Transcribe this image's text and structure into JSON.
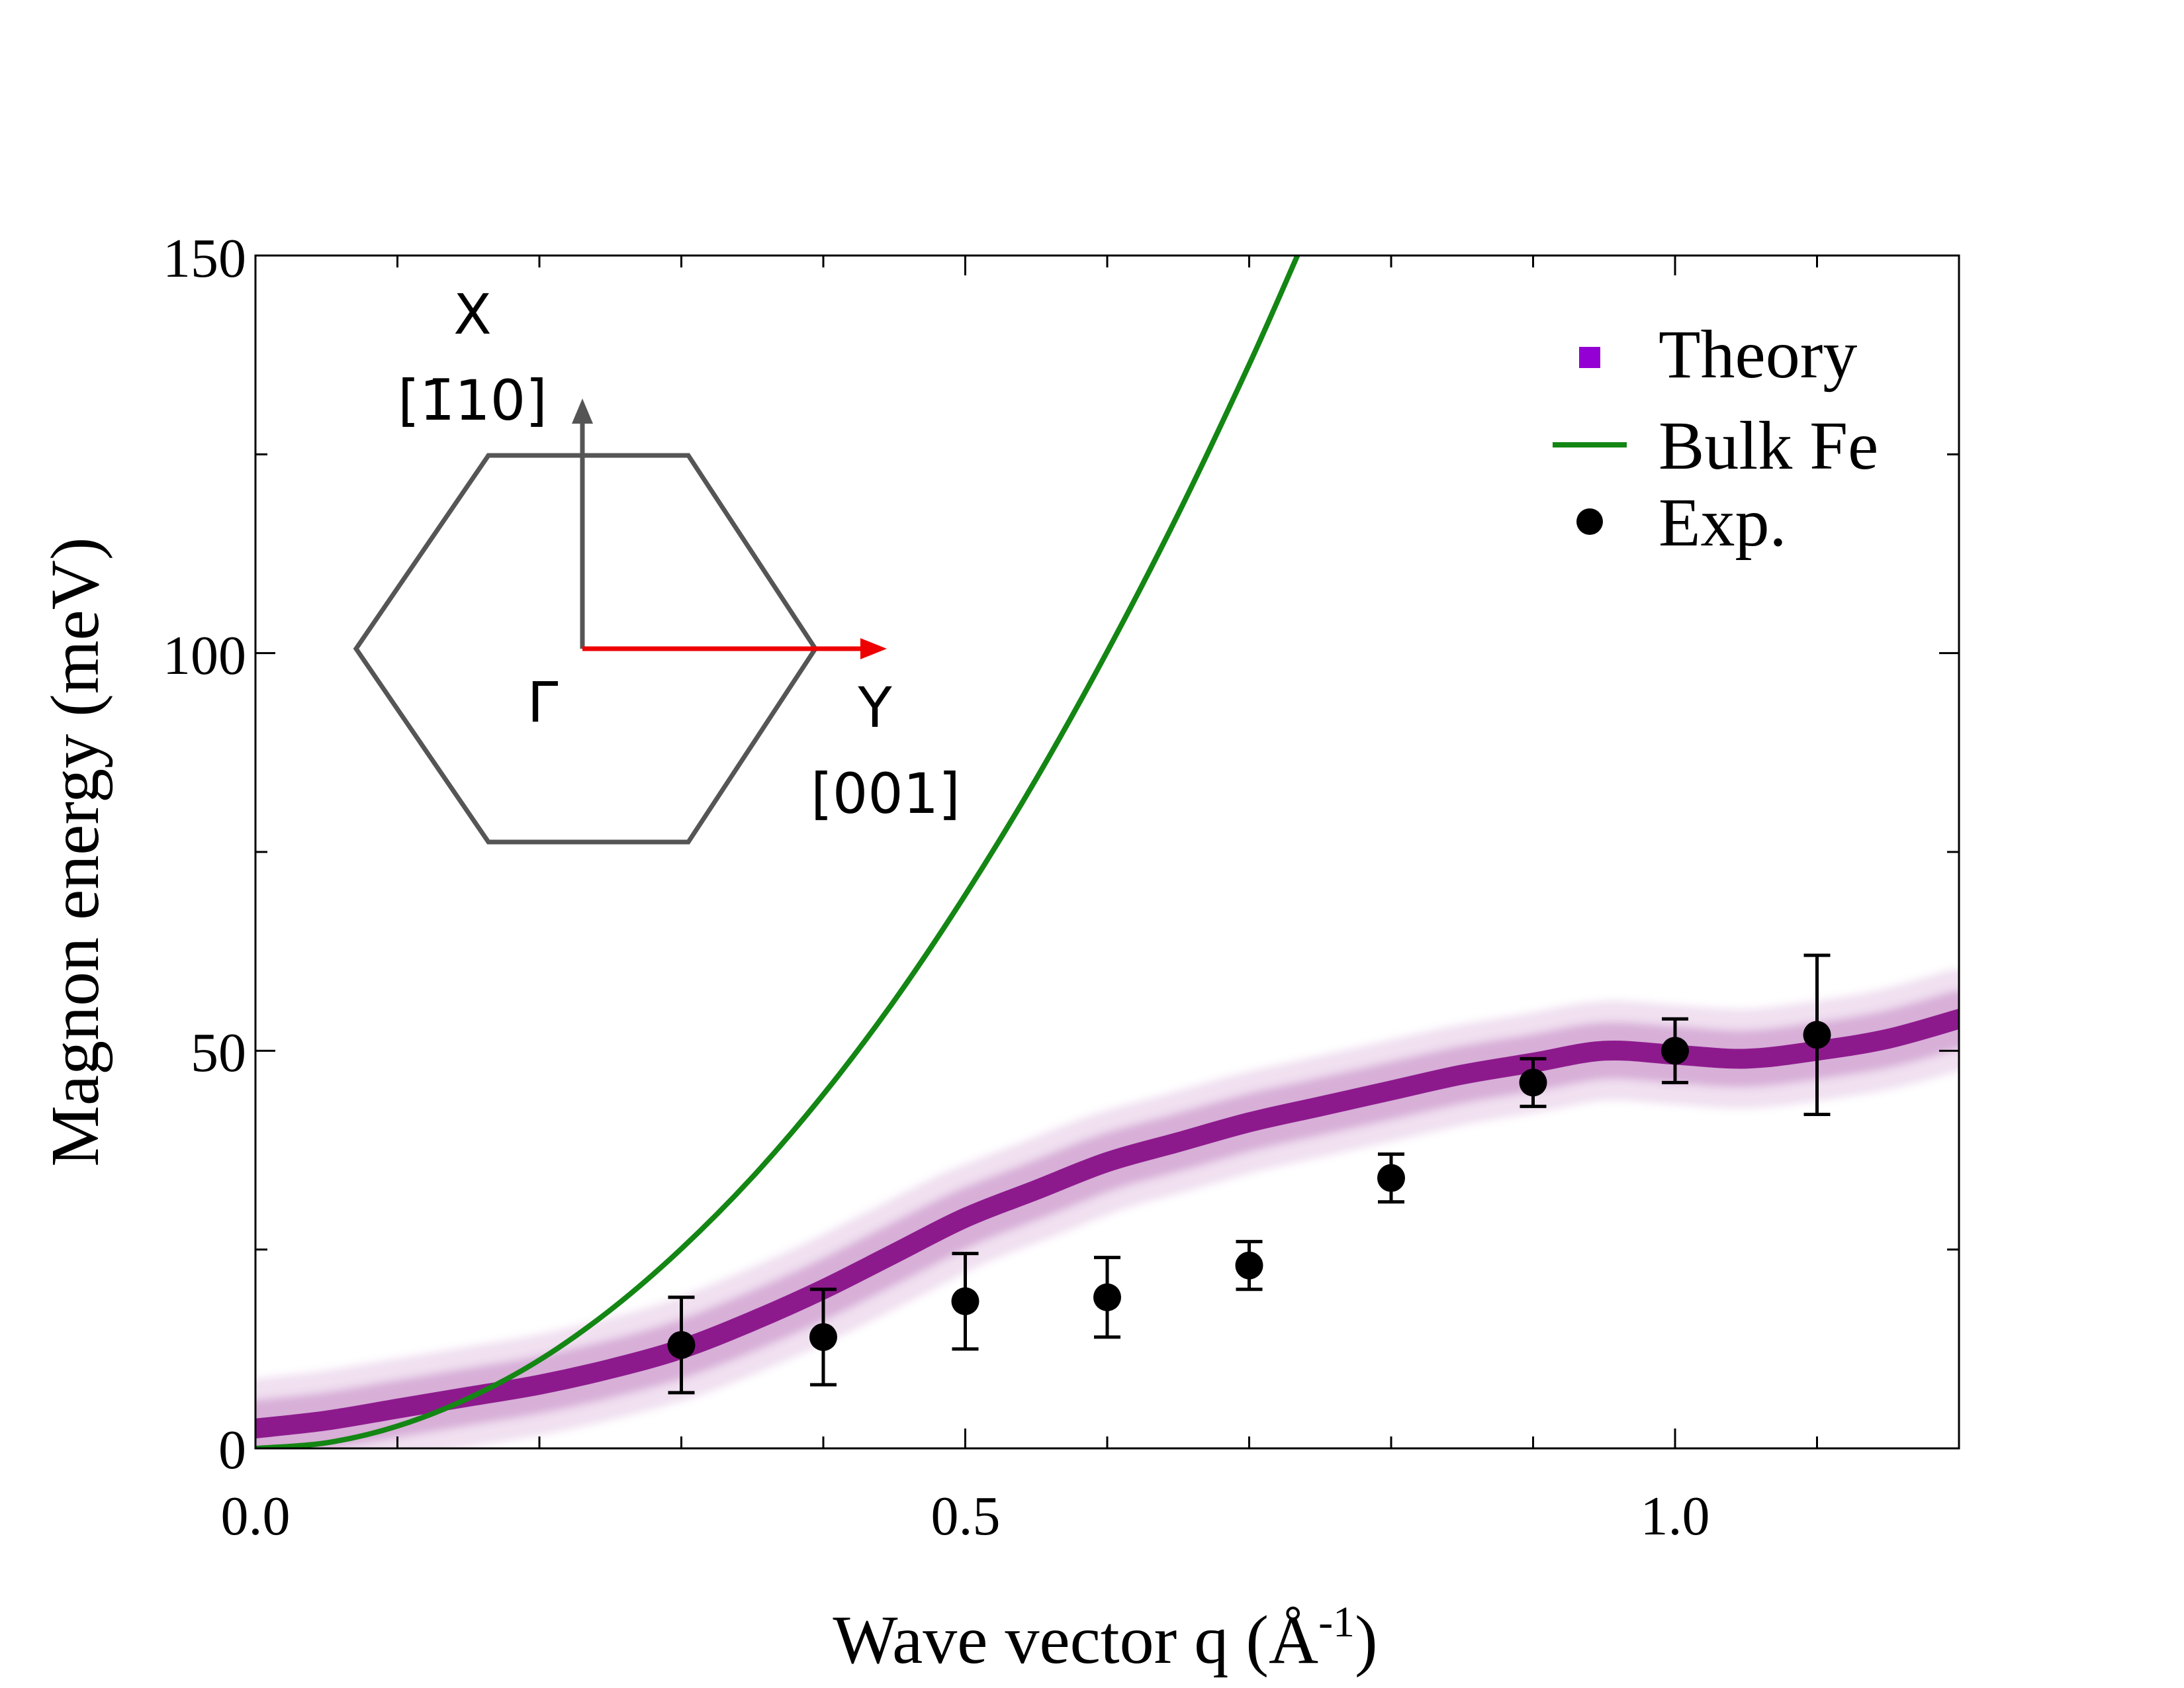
{
  "chart_data": {
    "type": "scatter",
    "title": "",
    "xlabel": "Wave vector q (Å",
    "xlabel_exponent": "-1",
    "xlabel_suffix": ")",
    "ylabel": "Magnon energy (meV)",
    "xlim": [
      0.0,
      1.2
    ],
    "ylim": [
      0,
      150
    ],
    "x_ticks": [
      0.0,
      0.5,
      1.0
    ],
    "x_tick_labels": [
      "0.0",
      "0.5",
      "1.0"
    ],
    "x_minor_ticks": [
      0.1,
      0.2,
      0.3,
      0.4,
      0.6,
      0.7,
      0.8,
      0.9,
      1.1
    ],
    "y_ticks": [
      0,
      50,
      100,
      150
    ],
    "y_tick_labels": [
      "0",
      "50",
      "100",
      "150"
    ],
    "y_minor_ticks": [
      25,
      75,
      125
    ],
    "legend_position": "top-right",
    "series": [
      {
        "name": "Theory",
        "kind": "band",
        "color": "#800080",
        "legend_color": "#9400d3",
        "x": [
          0.0,
          0.05,
          0.1,
          0.15,
          0.2,
          0.25,
          0.3,
          0.35,
          0.4,
          0.45,
          0.5,
          0.55,
          0.6,
          0.65,
          0.7,
          0.75,
          0.8,
          0.85,
          0.9,
          0.95,
          1.0,
          1.05,
          1.1,
          1.15,
          1.2
        ],
        "y": [
          2.5,
          3.5,
          5.0,
          6.5,
          8.0,
          10.0,
          12.5,
          16.0,
          20.0,
          24.5,
          29.0,
          32.5,
          36.0,
          38.5,
          41.0,
          43.0,
          45.0,
          47.0,
          48.5,
          50.0,
          49.5,
          49.0,
          50.0,
          51.5,
          54.0
        ]
      },
      {
        "name": "Bulk Fe",
        "kind": "line",
        "color": "#138613",
        "x": [
          0.0,
          0.05,
          0.1,
          0.15,
          0.2,
          0.25,
          0.3,
          0.35,
          0.4,
          0.45,
          0.5,
          0.55,
          0.6,
          0.65,
          0.7,
          0.734
        ],
        "y": [
          0.0,
          0.7,
          2.8,
          6.3,
          11.1,
          17.4,
          25.1,
          34.1,
          44.5,
          56.3,
          69.6,
          84.2,
          100.2,
          117.5,
          136.3,
          150.0
        ]
      },
      {
        "name": "Exp.",
        "kind": "points",
        "color": "#000000",
        "x": [
          0.3,
          0.4,
          0.5,
          0.6,
          0.7,
          0.8,
          0.9,
          1.0,
          1.1
        ],
        "y": [
          13,
          14,
          18.5,
          19,
          23,
          34,
          46,
          50,
          52
        ],
        "err_low": [
          6,
          6,
          6,
          5,
          3,
          3,
          3,
          4,
          10
        ],
        "err_high": [
          6,
          6,
          6,
          5,
          3,
          3,
          3,
          4,
          10
        ]
      }
    ],
    "inset": {
      "gamma_label": "Γ",
      "x_label": "X",
      "x_direction": "[1̄10]",
      "y_label": "Y",
      "y_direction": "[001]",
      "outline_color": "#555555",
      "x_arrow_color": "#555555",
      "y_arrow_color": "#ee0000"
    }
  }
}
